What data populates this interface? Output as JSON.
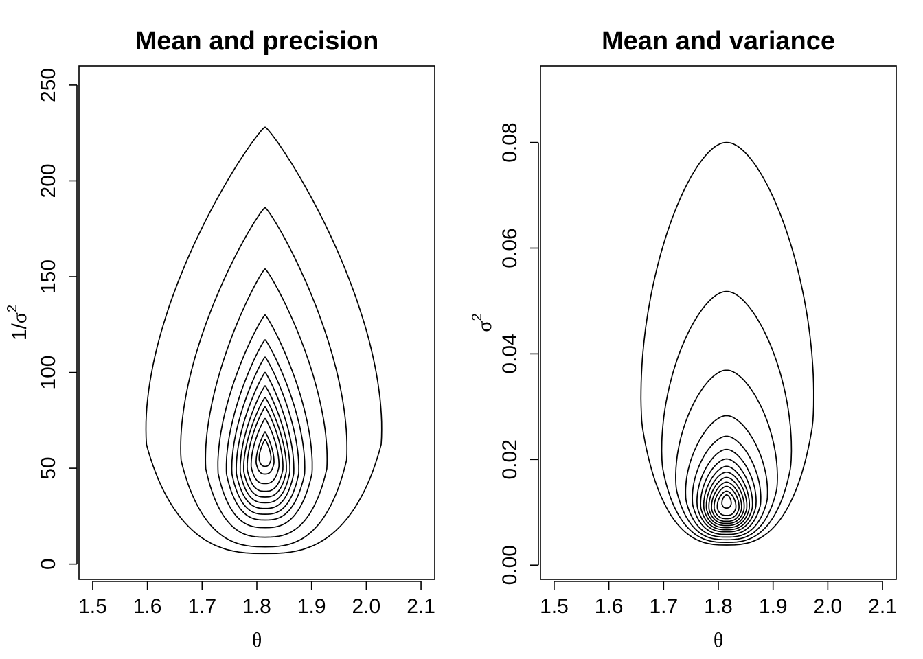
{
  "chart_data": [
    {
      "type": "contour",
      "title": "Mean and precision",
      "xlabel": "θ",
      "ylabel": {
        "prefix": "1/",
        "symbol": "σ",
        "superscript": "2"
      },
      "xlim": [
        1.475,
        2.125
      ],
      "ylim": [
        -8,
        260
      ],
      "x_ticks": [
        "1.5",
        "1.6",
        "1.7",
        "1.8",
        "1.9",
        "2.0",
        "2.1"
      ],
      "y_ticks": [
        "0",
        "50",
        "100",
        "150",
        "200",
        "250"
      ],
      "grid": false,
      "center": {
        "theta": 1.815,
        "y": 60
      },
      "contours": [
        {
          "top": 228,
          "bottom": 5.5,
          "left": 1.575,
          "right": 2.05
        },
        {
          "top": 186,
          "bottom": 9,
          "left": 1.645,
          "right": 1.98
        },
        {
          "top": 154,
          "bottom": 14,
          "left": 1.695,
          "right": 1.94
        },
        {
          "top": 130,
          "bottom": 19,
          "left": 1.72,
          "right": 1.91
        },
        {
          "top": 117,
          "bottom": 23,
          "left": 1.737,
          "right": 1.895
        },
        {
          "top": 108,
          "bottom": 26,
          "left": 1.748,
          "right": 1.883
        },
        {
          "top": 100,
          "bottom": 29,
          "left": 1.757,
          "right": 1.873
        },
        {
          "top": 93,
          "bottom": 32,
          "left": 1.765,
          "right": 1.865
        },
        {
          "top": 87,
          "bottom": 35,
          "left": 1.772,
          "right": 1.858
        },
        {
          "top": 82,
          "bottom": 38,
          "left": 1.779,
          "right": 1.851
        },
        {
          "top": 76,
          "bottom": 42,
          "left": 1.787,
          "right": 1.843
        },
        {
          "top": 69,
          "bottom": 47,
          "left": 1.797,
          "right": 1.833
        },
        {
          "top": 65,
          "bottom": 51,
          "left": 1.803,
          "right": 1.827
        }
      ]
    },
    {
      "type": "contour",
      "title": "Mean and variance",
      "xlabel": "θ",
      "ylabel": {
        "prefix": "",
        "symbol": "σ",
        "superscript": "2"
      },
      "xlim": [
        1.475,
        2.125
      ],
      "ylim": [
        -0.0027,
        0.0945
      ],
      "x_ticks": [
        "1.5",
        "1.6",
        "1.7",
        "1.8",
        "1.9",
        "2.0",
        "2.1"
      ],
      "y_ticks": [
        "0.00",
        "0.02",
        "0.04",
        "0.06",
        "0.08"
      ],
      "grid": false,
      "center": {
        "theta": 1.815,
        "y": 0.012
      },
      "contours": [
        {
          "top": 0.08,
          "bottom": 0.0038,
          "left": 1.65,
          "right": 1.983
        },
        {
          "top": 0.0518,
          "bottom": 0.0043,
          "left": 1.69,
          "right": 1.94
        },
        {
          "top": 0.0369,
          "bottom": 0.0048,
          "left": 1.717,
          "right": 1.913
        },
        {
          "top": 0.0283,
          "bottom": 0.0053,
          "left": 1.736,
          "right": 1.894
        },
        {
          "top": 0.0244,
          "bottom": 0.0058,
          "left": 1.749,
          "right": 1.881
        },
        {
          "top": 0.0219,
          "bottom": 0.0063,
          "left": 1.758,
          "right": 1.872
        },
        {
          "top": 0.0201,
          "bottom": 0.0067,
          "left": 1.765,
          "right": 1.865
        },
        {
          "top": 0.0187,
          "bottom": 0.0071,
          "left": 1.771,
          "right": 1.859
        },
        {
          "top": 0.0176,
          "bottom": 0.0075,
          "left": 1.776,
          "right": 1.854
        },
        {
          "top": 0.0166,
          "bottom": 0.0079,
          "left": 1.781,
          "right": 1.849
        },
        {
          "top": 0.0157,
          "bottom": 0.0083,
          "left": 1.786,
          "right": 1.844
        },
        {
          "top": 0.0149,
          "bottom": 0.0088,
          "left": 1.791,
          "right": 1.839
        },
        {
          "top": 0.014,
          "bottom": 0.0094,
          "left": 1.797,
          "right": 1.833
        },
        {
          "top": 0.0133,
          "bottom": 0.0108,
          "left": 1.806,
          "right": 1.824
        }
      ]
    }
  ]
}
